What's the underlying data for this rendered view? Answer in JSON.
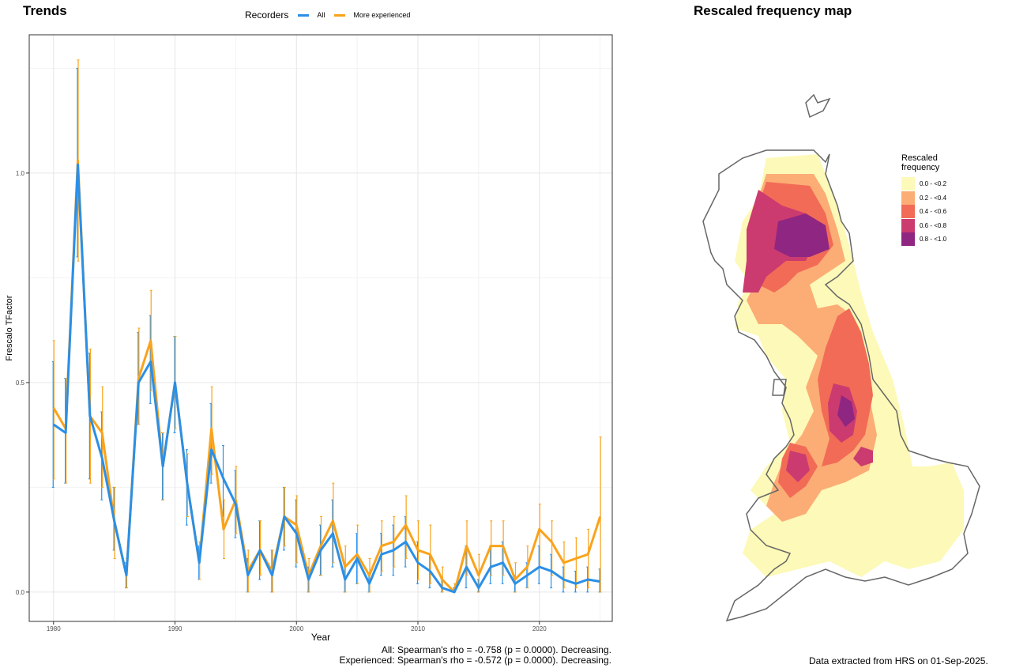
{
  "trends": {
    "title": "Trends",
    "legend_title": "Recorders",
    "stats_line1": "All: Spearman's rho = -0.758 (p = 0.0000). Decreasing.",
    "stats_line2": "Experienced: Spearman's rho = -0.572 (p = 0.0000). Decreasing."
  },
  "map": {
    "title": "Rescaled frequency map",
    "legend_title_line1": "Rescaled",
    "legend_title_line2": "frequency",
    "legend_items": [
      {
        "label": "0.0 - <0.2",
        "color": "#fdf9b8"
      },
      {
        "label": "0.2 - <0.4",
        "color": "#fbad75"
      },
      {
        "label": "0.4 - <0.6",
        "color": "#f26b56"
      },
      {
        "label": "0.6 - <0.8",
        "color": "#cb3b6f"
      },
      {
        "label": "0.8 - <1.0",
        "color": "#8f2682"
      }
    ],
    "credit": "Data extracted from HRS on 01-Sep-2025."
  },
  "chart_data": {
    "type": "line",
    "title": "Trends",
    "xlabel": "Year",
    "ylabel": "Frescalo TFactor",
    "xlim": [
      1978,
      2026
    ],
    "ylim": [
      -0.07,
      1.33
    ],
    "x_ticks": [
      1980,
      1990,
      2000,
      2010,
      2020
    ],
    "y_ticks": [
      0.0,
      0.5,
      1.0
    ],
    "x_tick_labels": [
      "1980",
      "1990",
      "2000",
      "2010",
      "2020"
    ],
    "y_tick_labels": [
      "0.0",
      "0.5",
      "1.0"
    ],
    "grid": true,
    "legend_position": "top",
    "series": [
      {
        "name": "All",
        "color": "#2b8fe6",
        "x": [
          1980,
          1981,
          1982,
          1983,
          1984,
          1985,
          1986,
          1987,
          1988,
          1989,
          1990,
          1991,
          1992,
          1993,
          1994,
          1995,
          1996,
          1997,
          1998,
          1999,
          2000,
          2001,
          2002,
          2003,
          2004,
          2005,
          2006,
          2007,
          2008,
          2009,
          2010,
          2011,
          2012,
          2013,
          2014,
          2015,
          2016,
          2017,
          2018,
          2019,
          2020,
          2021,
          2022,
          2023,
          2024,
          2025
        ],
        "y": [
          0.4,
          0.38,
          1.02,
          0.42,
          0.32,
          0.17,
          0.04,
          0.5,
          0.55,
          0.3,
          0.5,
          0.26,
          0.07,
          0.34,
          0.27,
          0.21,
          0.04,
          0.1,
          0.04,
          0.18,
          0.14,
          0.03,
          0.1,
          0.14,
          0.03,
          0.08,
          0.02,
          0.09,
          0.1,
          0.12,
          0.07,
          0.05,
          0.01,
          0.0,
          0.06,
          0.01,
          0.06,
          0.07,
          0.02,
          0.04,
          0.06,
          0.05,
          0.03,
          0.02,
          0.03,
          0.025
        ],
        "lower": [
          0.25,
          0.26,
          0.8,
          0.27,
          0.22,
          0.1,
          0.01,
          0.4,
          0.45,
          0.22,
          0.38,
          0.16,
          0.03,
          0.26,
          0.18,
          0.13,
          0.0,
          0.03,
          0.0,
          0.1,
          0.06,
          0.0,
          0.04,
          0.06,
          0.0,
          0.02,
          0.0,
          0.04,
          0.04,
          0.06,
          0.02,
          0.01,
          0.0,
          0.0,
          0.01,
          0.0,
          0.02,
          0.02,
          0.0,
          0.01,
          0.02,
          0.01,
          0.0,
          0.0,
          0.0,
          0.0
        ],
        "upper": [
          0.55,
          0.51,
          1.25,
          0.57,
          0.43,
          0.25,
          0.07,
          0.62,
          0.66,
          0.38,
          0.61,
          0.34,
          0.11,
          0.45,
          0.35,
          0.29,
          0.08,
          0.17,
          0.1,
          0.25,
          0.22,
          0.06,
          0.16,
          0.22,
          0.06,
          0.14,
          0.04,
          0.14,
          0.16,
          0.18,
          0.12,
          0.09,
          0.03,
          0.01,
          0.11,
          0.03,
          0.11,
          0.12,
          0.04,
          0.07,
          0.11,
          0.09,
          0.06,
          0.05,
          0.06,
          0.055
        ]
      },
      {
        "name": "More experienced",
        "color": "#f9a31c",
        "x": [
          1980,
          1981,
          1982,
          1983,
          1984,
          1985,
          1986,
          1987,
          1988,
          1989,
          1990,
          1991,
          1992,
          1993,
          1994,
          1995,
          1996,
          1997,
          1998,
          1999,
          2000,
          2001,
          2002,
          2003,
          2004,
          2005,
          2006,
          2007,
          2008,
          2009,
          2010,
          2011,
          2012,
          2013,
          2014,
          2015,
          2016,
          2017,
          2018,
          2019,
          2020,
          2021,
          2022,
          2023,
          2024,
          2025
        ],
        "y": [
          0.44,
          0.39,
          1.03,
          0.42,
          0.38,
          0.17,
          0.04,
          0.51,
          0.6,
          0.3,
          0.5,
          0.26,
          0.07,
          0.39,
          0.15,
          0.22,
          0.05,
          0.1,
          0.05,
          0.18,
          0.16,
          0.04,
          0.11,
          0.17,
          0.06,
          0.09,
          0.04,
          0.11,
          0.12,
          0.16,
          0.1,
          0.09,
          0.03,
          0.0,
          0.11,
          0.04,
          0.11,
          0.11,
          0.03,
          0.06,
          0.15,
          0.12,
          0.07,
          0.08,
          0.09,
          0.18
        ],
        "lower": [
          0.27,
          0.26,
          0.79,
          0.26,
          0.25,
          0.08,
          0.01,
          0.4,
          0.48,
          0.22,
          0.39,
          0.18,
          0.03,
          0.28,
          0.08,
          0.14,
          0.0,
          0.04,
          0.0,
          0.11,
          0.07,
          0.0,
          0.04,
          0.07,
          0.0,
          0.02,
          0.0,
          0.05,
          0.06,
          0.08,
          0.03,
          0.02,
          0.0,
          0.0,
          0.04,
          0.0,
          0.04,
          0.04,
          0.0,
          0.01,
          0.06,
          0.04,
          0.01,
          0.01,
          0.01,
          0.0
        ],
        "upper": [
          0.6,
          0.51,
          1.27,
          0.58,
          0.49,
          0.25,
          0.08,
          0.63,
          0.72,
          0.38,
          0.61,
          0.33,
          0.12,
          0.49,
          0.22,
          0.3,
          0.1,
          0.17,
          0.1,
          0.25,
          0.23,
          0.08,
          0.18,
          0.26,
          0.11,
          0.16,
          0.08,
          0.17,
          0.18,
          0.23,
          0.17,
          0.16,
          0.06,
          0.02,
          0.17,
          0.09,
          0.17,
          0.17,
          0.07,
          0.11,
          0.21,
          0.17,
          0.12,
          0.13,
          0.15,
          0.37
        ]
      }
    ]
  }
}
